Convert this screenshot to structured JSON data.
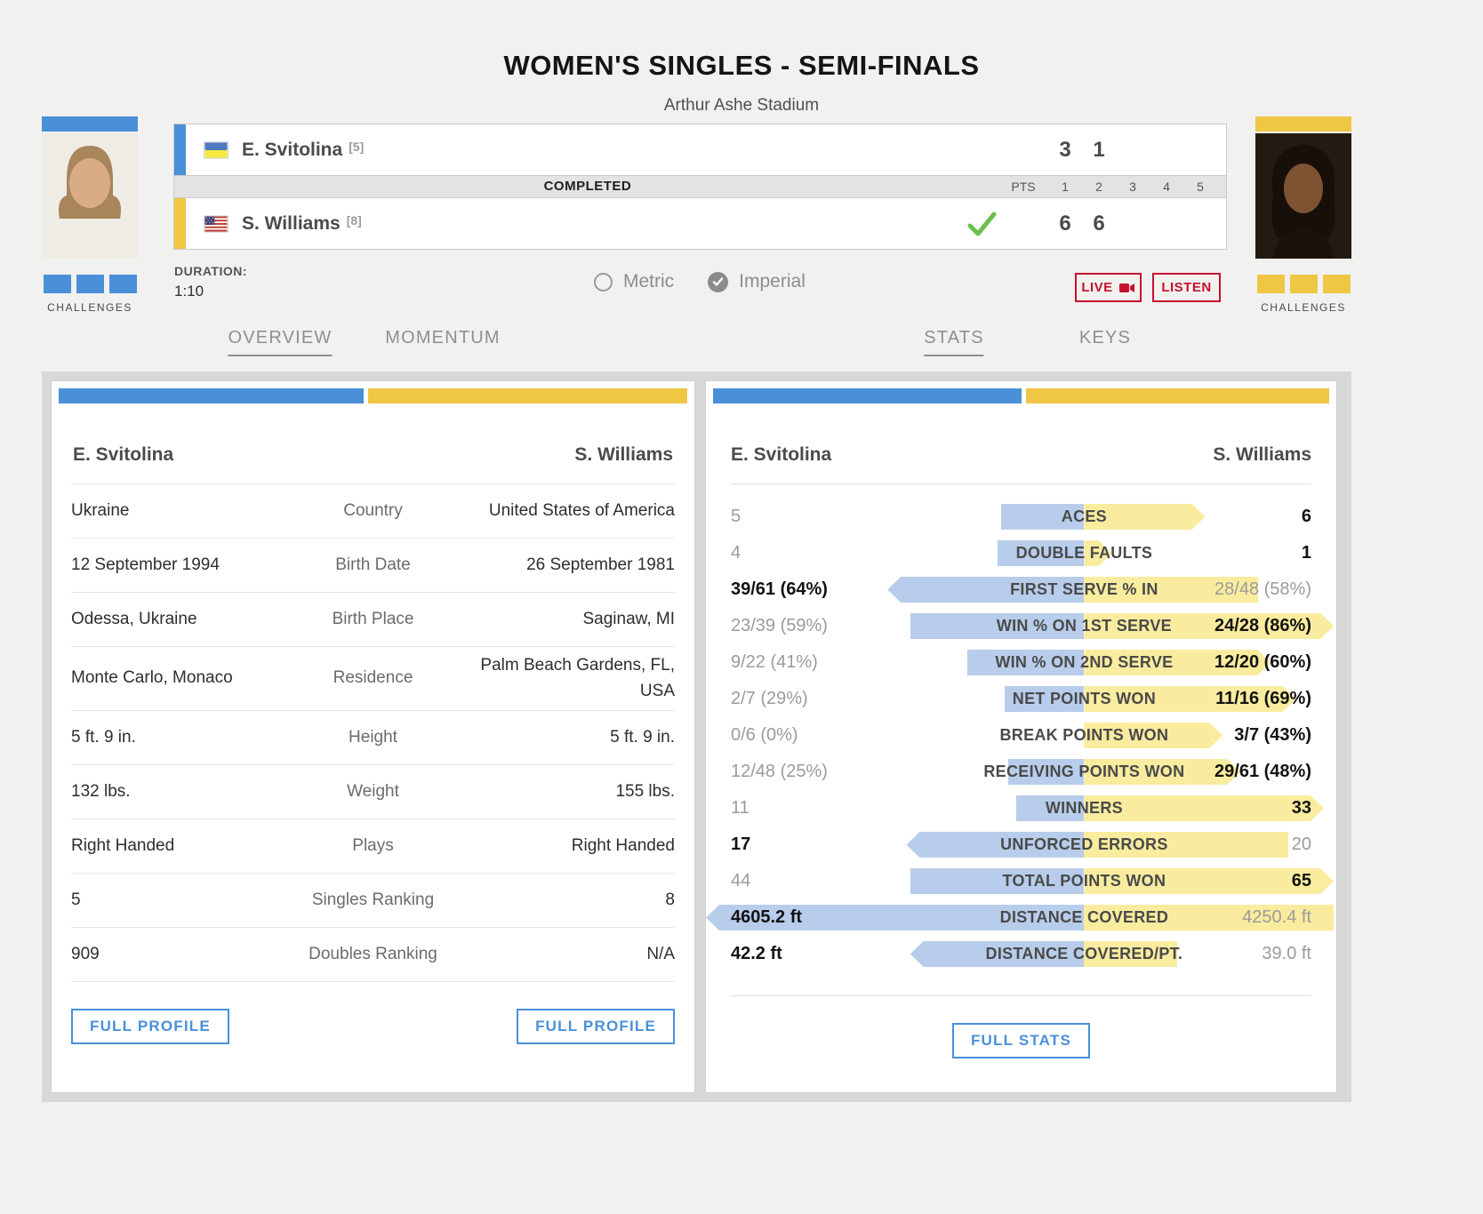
{
  "page": {
    "title": "WOMEN'S SINGLES - SEMI-FINALS",
    "venue": "Arthur Ashe Stadium"
  },
  "colors": {
    "accent_blue": "#4a90d9",
    "accent_yellow": "#f0c645",
    "bar_blue": "#b7cdeb",
    "bar_yellow": "#f9ec9f",
    "red": "#c8102e",
    "green": "#6cbf4c"
  },
  "scoreboard": {
    "completed_label": "COMPLETED",
    "pts_label": "PTS",
    "set_columns": [
      "1",
      "2",
      "3",
      "4",
      "5"
    ],
    "players": [
      {
        "name": "E. Svitolina",
        "seed": "[5]",
        "flag": "ukraine",
        "sets": [
          "3",
          "1"
        ],
        "winner": false
      },
      {
        "name": "S. Williams",
        "seed": "[8]",
        "flag": "usa",
        "sets": [
          "6",
          "6"
        ],
        "winner": true
      }
    ],
    "duration_label": "DURATION:",
    "duration_value": "1:10",
    "units": {
      "metric_label": "Metric",
      "imperial_label": "Imperial",
      "selected": "Imperial"
    },
    "live_label": "LIVE",
    "listen_label": "LISTEN"
  },
  "challenges": {
    "label": "CHALLENGES",
    "left_count": 3,
    "right_count": 3
  },
  "tabs": [
    {
      "label": "OVERVIEW",
      "active": true
    },
    {
      "label": "MOMENTUM",
      "active": false
    },
    {
      "label": "STATS",
      "active": true
    },
    {
      "label": "KEYS",
      "active": false
    }
  ],
  "profile": {
    "left_name": "E. Svitolina",
    "right_name": "S. Williams",
    "rows": [
      {
        "left": "Ukraine",
        "label": "Country",
        "right": "United States of America"
      },
      {
        "left": "12 September 1994",
        "label": "Birth Date",
        "right": "26 September 1981"
      },
      {
        "left": "Odessa, Ukraine",
        "label": "Birth Place",
        "right": "Saginaw, MI"
      },
      {
        "left": "Monte Carlo, Monaco",
        "label": "Residence",
        "right": "Palm Beach Gardens, FL, USA"
      },
      {
        "left": "5 ft. 9 in.",
        "label": "Height",
        "right": "5 ft. 9 in."
      },
      {
        "left": "132 lbs.",
        "label": "Weight",
        "right": "155 lbs."
      },
      {
        "left": "Right Handed",
        "label": "Plays",
        "right": "Right Handed"
      },
      {
        "left": "5",
        "label": "Singles Ranking",
        "right": "8"
      },
      {
        "left": "909",
        "label": "Doubles Ranking",
        "right": "N/A"
      }
    ],
    "full_profile_label": "FULL PROFILE"
  },
  "stats": {
    "left_name": "E. Svitolina",
    "right_name": "S. Williams",
    "rows": [
      {
        "label": "ACES",
        "left": "5",
        "right": "6",
        "winner": "right",
        "left_w": 22,
        "right_w": 48
      },
      {
        "label": "DOUBLE FAULTS",
        "left": "4",
        "right": "1",
        "winner": "right",
        "left_w": 23,
        "right_w": 11
      },
      {
        "label": "FIRST SERVE % IN",
        "left": "39/61 (64%)",
        "right": "28/48 (58%)",
        "winner": "left",
        "left_w": 52,
        "right_w": 69
      },
      {
        "label": "WIN % ON 1ST SERVE",
        "left": "23/39 (59%)",
        "right": "24/28 (86%)",
        "winner": "right",
        "left_w": 46,
        "right_w": 99
      },
      {
        "label": "WIN % ON 2ND SERVE",
        "left": "9/22 (41%)",
        "right": "12/20 (60%)",
        "winner": "right",
        "left_w": 31,
        "right_w": 74
      },
      {
        "label": "NET POINTS WON",
        "left": "2/7 (29%)",
        "right": "11/16 (69%)",
        "winner": "right",
        "left_w": 21,
        "right_w": 84
      },
      {
        "label": "BREAK POINTS WON",
        "left": "0/6 (0%)",
        "right": "3/7 (43%)",
        "winner": "right",
        "left_w": 0,
        "right_w": 55
      },
      {
        "label": "RECEIVING POINTS WON",
        "left": "12/48 (25%)",
        "right": "29/61 (48%)",
        "winner": "right",
        "left_w": 20,
        "right_w": 62
      },
      {
        "label": "WINNERS",
        "left": "11",
        "right": "33",
        "winner": "right",
        "left_w": 18,
        "right_w": 95
      },
      {
        "label": "UNFORCED ERRORS",
        "left": "17",
        "right": "20",
        "winner": "left",
        "left_w": 47,
        "right_w": 81
      },
      {
        "label": "TOTAL POINTS WON",
        "left": "44",
        "right": "65",
        "winner": "right",
        "left_w": 46,
        "right_w": 99
      },
      {
        "label": "DISTANCE COVERED",
        "left": "4605.2 ft",
        "right": "4250.4 ft",
        "winner": "left",
        "left_w": 100,
        "right_w": 99
      },
      {
        "label": "DISTANCE COVERED/PT.",
        "left": "42.2 ft",
        "right": "39.0 ft",
        "winner": "left",
        "left_w": 46,
        "right_w": 37
      }
    ],
    "full_stats_label": "FULL STATS"
  }
}
